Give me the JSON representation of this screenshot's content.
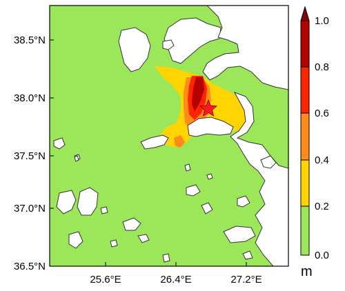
{
  "map": {
    "x_ticks": [
      "25.6°E",
      "26.4°E",
      "27.2°E"
    ],
    "y_ticks": [
      "38.5°N",
      "38.0°N",
      "37.5°N",
      "37.0°N",
      "36.5°N"
    ]
  },
  "colorbar": {
    "unit": "m",
    "ticks": [
      "1.0",
      "0.8",
      "0.6",
      "0.4",
      "0.2",
      "0.0"
    ],
    "bins": [
      {
        "range": [
          0.8,
          1.0
        ],
        "color": "#b40000"
      },
      {
        "range": [
          0.6,
          0.8
        ],
        "color": "#ff2400"
      },
      {
        "range": [
          0.4,
          0.6
        ],
        "color": "#ff8c1a"
      },
      {
        "range": [
          0.2,
          0.4
        ],
        "color": "#ffd400"
      },
      {
        "range": [
          0.0,
          0.2
        ],
        "color": "#9ce65a"
      }
    ],
    "extend_color": "#8b0000"
  },
  "colors": {
    "sea": "#9ce65a",
    "land": "#ffffff",
    "coast": "#333333",
    "star": "#ff1a1a"
  },
  "epicenter_marker": "star-icon"
}
